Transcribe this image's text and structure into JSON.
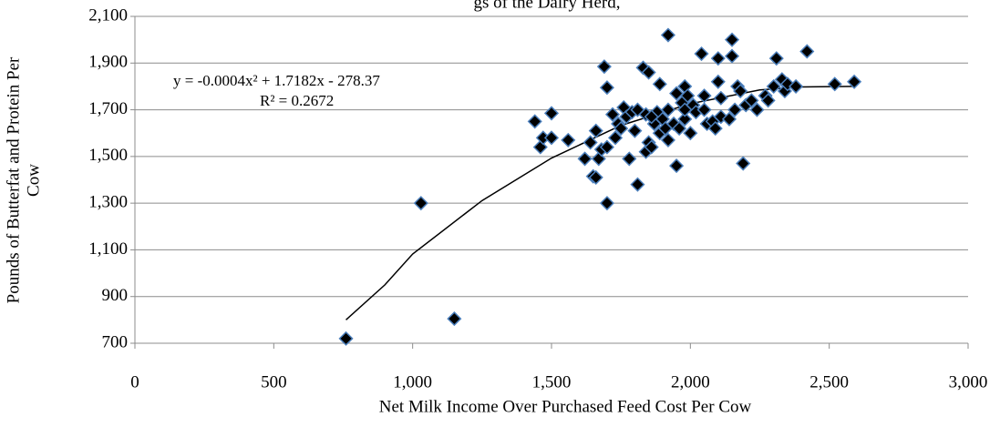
{
  "chart_data": {
    "type": "scatter",
    "title": "gs of the Dairy Herd,",
    "x_label": "Net Milk Income Over Purchased Feed Cost Per Cow",
    "y_label": [
      "Pounds of Butterfat and Protein Per",
      "Cow"
    ],
    "annotations": [
      "y = -0.0004x² + 1.7182x - 278.37",
      "R² = 0.2672"
    ],
    "xlim": [
      0,
      3000
    ],
    "ylim": [
      700,
      2100
    ],
    "xticks": [
      0,
      500,
      {
        "value": 1000,
        "label": "1,000"
      },
      {
        "value": 1500,
        "label": "1,500"
      },
      {
        "value": 2000,
        "label": "2,000"
      },
      {
        "value": 2500,
        "label": "2,500"
      },
      {
        "value": 3000,
        "label": "3,000"
      }
    ],
    "yticks": [
      700,
      900,
      {
        "value": 1100,
        "label": "1,100"
      },
      {
        "value": 1300,
        "label": "1,300"
      },
      {
        "value": 1500,
        "label": "1,500"
      },
      {
        "value": 1700,
        "label": "1,700"
      },
      {
        "value": 1900,
        "label": "1,900"
      },
      {
        "value": 2100,
        "label": "2,100"
      }
    ],
    "grid": true,
    "color": "#000000",
    "edge_color": "#4a7ebb",
    "x": [
      760,
      1030,
      1150,
      1440,
      1460,
      1470,
      1500,
      1500,
      1560,
      1620,
      1640,
      1650,
      1660,
      1660,
      1670,
      1680,
      1690,
      1700,
      1700,
      1700,
      1720,
      1730,
      1740,
      1760,
      1770,
      1780,
      1790,
      1800,
      1810,
      1810,
      1830,
      1840,
      1840,
      1850,
      1850,
      1860,
      1870,
      1880,
      1890,
      1890,
      1900,
      1910,
      1920,
      1920,
      1940,
      1950,
      1950,
      1960,
      1970,
      1980,
      1980,
      1990,
      2000,
      2010,
      2020,
      2040,
      2050,
      2060,
      2080,
      2090,
      2100,
      2100,
      2110,
      2140,
      2150,
      2150,
      2160,
      2170,
      2180,
      2190,
      2200,
      2220,
      2240,
      2270,
      2280,
      2300,
      2310,
      2330,
      2340,
      2350,
      2380,
      2420,
      2520,
      2590,
      2110,
      2050,
      1920,
      1980,
      1860,
      1750
    ],
    "values": [
      720,
      1300,
      805,
      1650,
      1540,
      1580,
      1580,
      1685,
      1570,
      1490,
      1560,
      1415,
      1410,
      1610,
      1490,
      1530,
      1885,
      1795,
      1300,
      1540,
      1680,
      1580,
      1640,
      1710,
      1670,
      1490,
      1690,
      1610,
      1380,
      1700,
      1880,
      1680,
      1520,
      1860,
      1560,
      1540,
      1640,
      1690,
      1810,
      1600,
      1660,
      1620,
      2020,
      1570,
      1640,
      1460,
      1770,
      1620,
      1730,
      1800,
      1660,
      1760,
      1600,
      1720,
      1690,
      1940,
      1700,
      1640,
      1650,
      1620,
      1920,
      1820,
      1670,
      1660,
      1930,
      2000,
      1700,
      1800,
      1780,
      1470,
      1720,
      1740,
      1700,
      1760,
      1740,
      1800,
      1920,
      1830,
      1780,
      1810,
      1800,
      1950,
      1810,
      1820,
      1750,
      1760,
      1700,
      1700,
      1670,
      1620
    ],
    "trendline": {
      "x": [
        760,
        900,
        1000,
        1250,
        1500,
        1750,
        2000,
        2250,
        2400,
        2590
      ],
      "values": [
        800,
        950,
        1082,
        1311,
        1493,
        1633,
        1726,
        1785,
        1798,
        1800
      ]
    }
  }
}
